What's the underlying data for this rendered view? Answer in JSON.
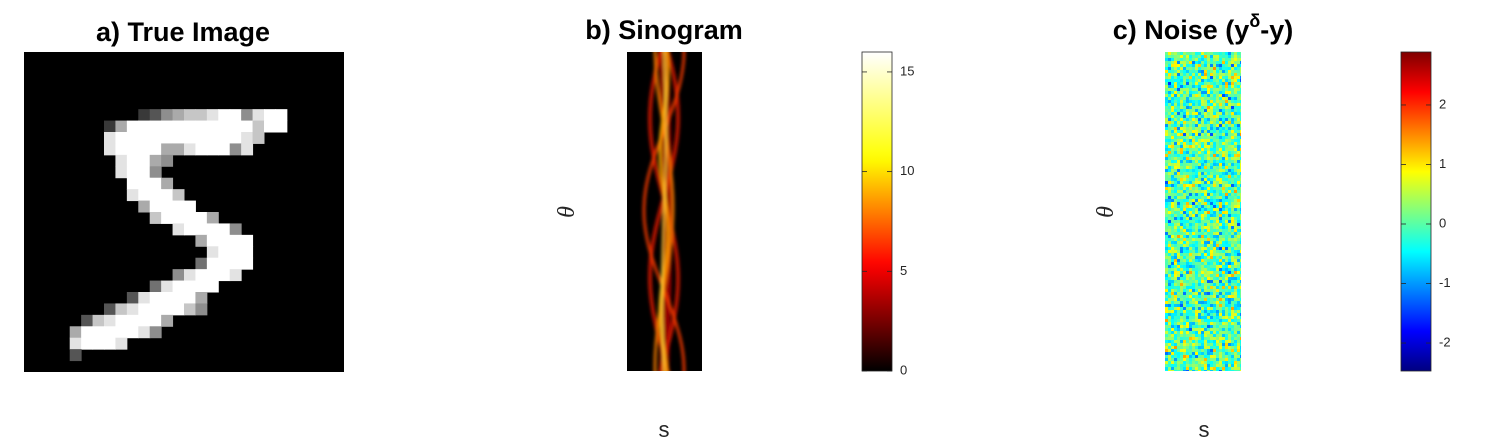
{
  "chart_data": [
    {
      "type": "image",
      "title": "a) True Image"
    },
    {
      "type": "heatmap",
      "title": "b) Sinogram",
      "xlabel": "s",
      "ylabel": "θ",
      "colormap": "hot",
      "clim": [
        0,
        16
      ],
      "cticks": [
        0,
        5,
        10,
        15
      ]
    },
    {
      "type": "heatmap",
      "title": [
        "c) Noise (y",
        "δ",
        "-y)"
      ],
      "xlabel": "s",
      "ylabel": "θ",
      "colormap": "jet",
      "clim": [
        -2.47,
        2.89
      ],
      "cticks": [
        -2,
        -1,
        0,
        1,
        2
      ]
    }
  ]
}
